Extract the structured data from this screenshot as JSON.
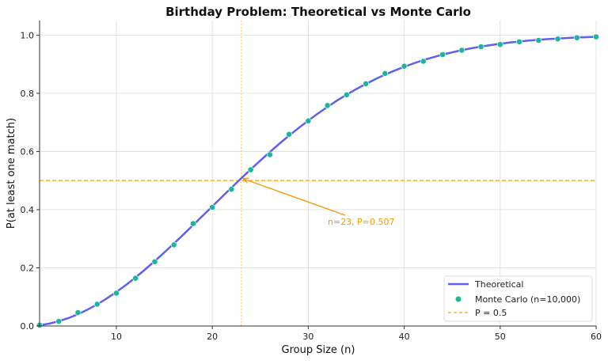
{
  "chart_data": {
    "type": "line",
    "title": "Birthday Problem: Theoretical vs Monte Carlo",
    "xlabel": "Group Size (n)",
    "ylabel": "P(at least one match)",
    "xlim": [
      2,
      60
    ],
    "ylim": [
      0,
      1.05
    ],
    "xticks": [
      10,
      20,
      30,
      40,
      50,
      60
    ],
    "yticks": [
      0.0,
      0.2,
      0.4,
      0.6,
      0.8,
      1.0
    ],
    "ytick_labels": [
      "0.0",
      "0.2",
      "0.4",
      "0.6",
      "0.8",
      "1.0"
    ],
    "grid": true,
    "legend_position": "bottom-right",
    "series": [
      {
        "name": "Theoretical",
        "kind": "line",
        "color": "#6060ee",
        "x": [
          2,
          3,
          4,
          5,
          6,
          7,
          8,
          9,
          10,
          11,
          12,
          13,
          14,
          15,
          16,
          17,
          18,
          19,
          20,
          21,
          22,
          23,
          24,
          25,
          26,
          27,
          28,
          29,
          30,
          31,
          32,
          33,
          34,
          35,
          36,
          37,
          38,
          39,
          40,
          41,
          42,
          43,
          44,
          45,
          46,
          47,
          48,
          49,
          50,
          51,
          52,
          53,
          54,
          55,
          56,
          57,
          58,
          59,
          60
        ],
        "y": [
          0.0027,
          0.0082,
          0.0164,
          0.0271,
          0.0405,
          0.0562,
          0.0743,
          0.0946,
          0.1169,
          0.1411,
          0.167,
          0.1944,
          0.2231,
          0.2529,
          0.2836,
          0.315,
          0.3469,
          0.3791,
          0.4114,
          0.4437,
          0.4757,
          0.5073,
          0.5383,
          0.5687,
          0.5982,
          0.6269,
          0.6545,
          0.681,
          0.7063,
          0.7305,
          0.7533,
          0.775,
          0.7953,
          0.8144,
          0.8322,
          0.8487,
          0.8641,
          0.8782,
          0.8912,
          0.9032,
          0.914,
          0.9239,
          0.9329,
          0.941,
          0.9483,
          0.9548,
          0.9606,
          0.9658,
          0.9704,
          0.9744,
          0.978,
          0.9811,
          0.9838,
          0.9863,
          0.9883,
          0.9901,
          0.9917,
          0.993,
          0.9941
        ]
      },
      {
        "name": "Monte Carlo (n=10,000)",
        "kind": "scatter",
        "color": "#1ab89a",
        "x": [
          2,
          4,
          6,
          8,
          10,
          12,
          14,
          16,
          18,
          20,
          22,
          24,
          26,
          28,
          30,
          32,
          34,
          36,
          38,
          40,
          42,
          44,
          46,
          48,
          50,
          52,
          54,
          56,
          58,
          60
        ],
        "y": [
          0.003,
          0.016,
          0.046,
          0.075,
          0.113,
          0.164,
          0.221,
          0.279,
          0.352,
          0.408,
          0.47,
          0.537,
          0.589,
          0.659,
          0.705,
          0.758,
          0.795,
          0.833,
          0.868,
          0.893,
          0.91,
          0.933,
          0.948,
          0.96,
          0.968,
          0.977,
          0.982,
          0.987,
          0.991,
          0.994
        ]
      },
      {
        "name": "P = 0.5",
        "kind": "hline",
        "color": "#f5a623",
        "y": 0.5
      }
    ],
    "vline": {
      "x": 23,
      "color": "#f5c27a"
    },
    "annotation": {
      "text": "n=23, P≈0.507",
      "x": 23,
      "y": 0.507,
      "color": "#f59a0a"
    }
  }
}
